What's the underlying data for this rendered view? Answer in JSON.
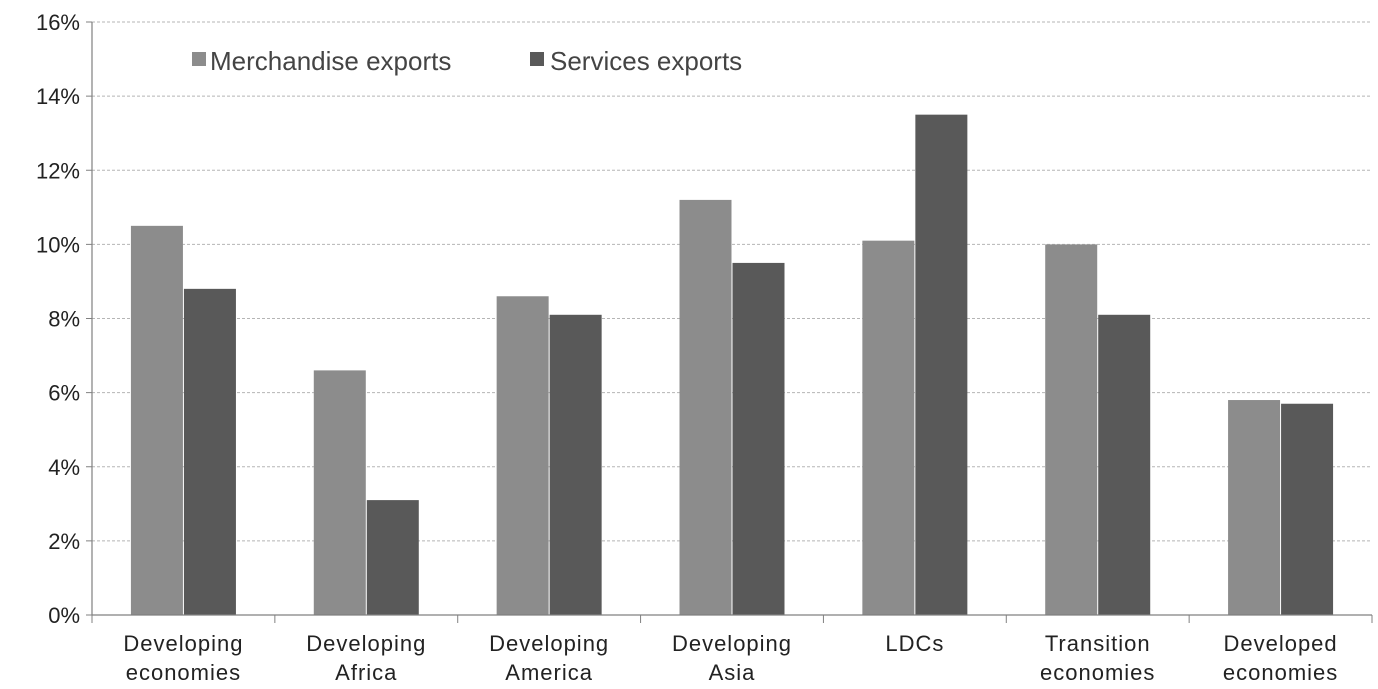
{
  "chart_data": {
    "type": "bar",
    "categories": [
      [
        "Developing",
        "economies"
      ],
      [
        "Developing",
        "Africa"
      ],
      [
        "Developing",
        "America"
      ],
      [
        "Developing",
        "Asia"
      ],
      [
        "LDCs"
      ],
      [
        "Transition",
        "economies"
      ],
      [
        "Developed",
        "economies"
      ]
    ],
    "series": [
      {
        "name": "Merchandise exports",
        "color": "#8c8c8c",
        "values": [
          10.5,
          6.6,
          8.6,
          11.2,
          10.1,
          10.0,
          5.8
        ]
      },
      {
        "name": "Services exports",
        "color": "#595959",
        "values": [
          8.8,
          3.1,
          8.1,
          9.5,
          13.5,
          8.1,
          5.7
        ]
      }
    ],
    "ylim": [
      0,
      16
    ],
    "yticks": [
      0,
      2,
      4,
      6,
      8,
      10,
      12,
      14,
      16
    ],
    "ytick_labels": [
      "0%",
      "2%",
      "4%",
      "6%",
      "8%",
      "10%",
      "12%",
      "14%",
      "16%"
    ],
    "grid": true,
    "legend_position": "top-left",
    "title": "",
    "xlabel": "",
    "ylabel": ""
  }
}
